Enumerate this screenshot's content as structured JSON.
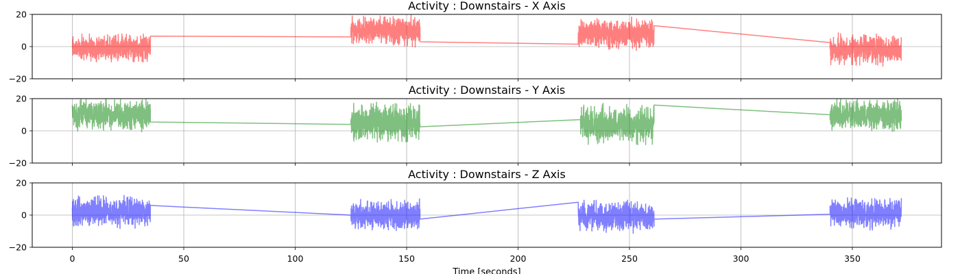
{
  "chart_data": [
    {
      "type": "line",
      "title": "Activity : Downstairs - X Axis",
      "ylim": [
        -20,
        20
      ],
      "y_ticks": [
        -20,
        0,
        20
      ],
      "xlim": [
        -18,
        390
      ],
      "x_ticks": [
        0,
        50,
        100,
        150,
        200,
        250,
        300,
        350
      ],
      "show_x_tick_labels": false,
      "grid": true,
      "color": "#ff0000",
      "segments": [
        {
          "x_start": 0,
          "x_end": 35,
          "center": -1,
          "amplitude": 7
        },
        {
          "x_start": 125,
          "x_end": 156,
          "center": 10,
          "amplitude": 8
        },
        {
          "x_start": 227,
          "x_end": 261,
          "center": 8,
          "amplitude": 8
        },
        {
          "x_start": 340,
          "x_end": 372,
          "center": -2,
          "amplitude": 8
        }
      ],
      "connectors": [
        {
          "x": [
            35,
            125
          ],
          "y": [
            6.5,
            6
          ]
        },
        {
          "x": [
            156,
            227
          ],
          "y": [
            3,
            1.5
          ]
        },
        {
          "x": [
            261,
            340
          ],
          "y": [
            13,
            2.5
          ]
        }
      ]
    },
    {
      "type": "line",
      "title": "Activity : Downstairs - Y Axis",
      "ylim": [
        -20,
        20
      ],
      "y_ticks": [
        -20,
        0,
        20
      ],
      "xlim": [
        -18,
        390
      ],
      "x_ticks": [
        0,
        50,
        100,
        150,
        200,
        250,
        300,
        350
      ],
      "show_x_tick_labels": false,
      "grid": true,
      "color": "#008000",
      "segments": [
        {
          "x_start": 0,
          "x_end": 35,
          "center": 10,
          "amplitude": 8
        },
        {
          "x_start": 125,
          "x_end": 156,
          "center": 5,
          "amplitude": 10
        },
        {
          "x_start": 228,
          "x_end": 261,
          "center": 4,
          "amplitude": 10
        },
        {
          "x_start": 340,
          "x_end": 372,
          "center": 10,
          "amplitude": 8
        }
      ],
      "connectors": [
        {
          "x": [
            35,
            125
          ],
          "y": [
            5.5,
            4
          ]
        },
        {
          "x": [
            156,
            228
          ],
          "y": [
            2.5,
            7
          ]
        },
        {
          "x": [
            261,
            340
          ],
          "y": [
            16,
            10
          ]
        }
      ]
    },
    {
      "type": "line",
      "title": "Activity : Downstairs - Z Axis",
      "ylim": [
        -20,
        20
      ],
      "y_ticks": [
        -20,
        0,
        20
      ],
      "xlim": [
        -18,
        390
      ],
      "x_ticks": [
        0,
        50,
        100,
        150,
        200,
        250,
        300,
        350
      ],
      "show_x_tick_labels": true,
      "xlabel": "Time [seconds]",
      "grid": true,
      "color": "#0000ff",
      "segments": [
        {
          "x_start": 0,
          "x_end": 35,
          "center": 2,
          "amplitude": 8
        },
        {
          "x_start": 125,
          "x_end": 156,
          "center": 0,
          "amplitude": 8
        },
        {
          "x_start": 227,
          "x_end": 261,
          "center": -1,
          "amplitude": 8
        },
        {
          "x_start": 340,
          "x_end": 372,
          "center": 1,
          "amplitude": 8
        }
      ],
      "connectors": [
        {
          "x": [
            35,
            125
          ],
          "y": [
            6,
            0
          ]
        },
        {
          "x": [
            156,
            227
          ],
          "y": [
            -2.5,
            8
          ]
        },
        {
          "x": [
            261,
            340
          ],
          "y": [
            -2.5,
            0.5
          ]
        }
      ]
    }
  ]
}
